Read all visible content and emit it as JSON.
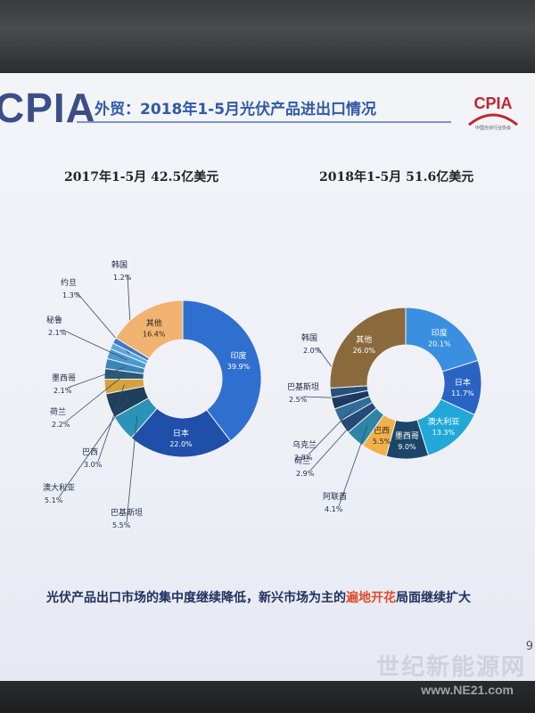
{
  "slide": {
    "logo": "CPIA",
    "title": "外贸：2018年1-5月光伏产品进出口情况",
    "logo_small": "CPIA",
    "logo_small_sub": "中国光伏行业协会",
    "caption_before": "光伏产品出口市场的集中度继续降低，新兴市场为主的",
    "caption_highlight": "遍地开花",
    "caption_after": "局面继续扩大",
    "page_number": "9",
    "watermark": "世纪新能源网",
    "watermark_url": "www.NE21.com"
  },
  "chart_data": [
    {
      "type": "pie",
      "donut": true,
      "title": "2017年1-5月 42.5亿美元",
      "slices": [
        {
          "label": "印度",
          "value": 39.9,
          "value_label": "39.9%",
          "color": "#2f6fd0"
        },
        {
          "label": "日本",
          "value": 22.0,
          "value_label": "22.0%",
          "color": "#1f4fa8"
        },
        {
          "label": "巴基斯坦",
          "value": 5.5,
          "value_label": "5.5%",
          "color": "#2a93b8"
        },
        {
          "label": "澳大利亚",
          "value": 5.1,
          "value_label": "5.1%",
          "color": "#1f3f5a"
        },
        {
          "label": "巴西",
          "value": 3.0,
          "value_label": "3.0%",
          "color": "#d6a23a"
        },
        {
          "label": "荷兰",
          "value": 2.2,
          "value_label": "2.2%",
          "color": "#2a5a78"
        },
        {
          "label": "墨西哥",
          "value": 2.1,
          "value_label": "2.1%",
          "color": "#3a86b8"
        },
        {
          "label": "秘鲁",
          "value": 2.1,
          "value_label": "2.1%",
          "color": "#4a9ad0"
        },
        {
          "label": "约旦",
          "value": 1.3,
          "value_label": "1.3%",
          "color": "#5aa8de"
        },
        {
          "label": "韩国",
          "value": 1.2,
          "value_label": "1.2%",
          "color": "#3c78c8"
        },
        {
          "label": "其他",
          "value": 16.4,
          "value_label": "16.4%",
          "color": "#f2b270"
        }
      ]
    },
    {
      "type": "pie",
      "donut": true,
      "title": "2018年1-5月 51.6亿美元",
      "slices": [
        {
          "label": "印度",
          "value": 20.1,
          "value_label": "20.1%",
          "color": "#3a8fe0"
        },
        {
          "label": "日本",
          "value": 11.7,
          "value_label": "11.7%",
          "color": "#2a63c2"
        },
        {
          "label": "澳大利亚",
          "value": 13.3,
          "value_label": "13.3%",
          "color": "#22a8d8"
        },
        {
          "label": "墨西哥",
          "value": 9.0,
          "value_label": "9.0%",
          "color": "#1c4668"
        },
        {
          "label": "巴西",
          "value": 5.5,
          "value_label": "5.5%",
          "color": "#f2b04a"
        },
        {
          "label": "阿联酋",
          "value": 4.1,
          "value_label": "4.1%",
          "color": "#2d86a8"
        },
        {
          "label": "荷兰",
          "value": 2.9,
          "value_label": "2.9%",
          "color": "#244a78"
        },
        {
          "label": "乌克兰",
          "value": 2.8,
          "value_label": "2.8%",
          "color": "#2f6e9a"
        },
        {
          "label": "巴基斯坦",
          "value": 2.5,
          "value_label": "2.5%",
          "color": "#1c3a5e"
        },
        {
          "label": "韩国",
          "value": 2.0,
          "value_label": "2.0%",
          "color": "#28507e"
        },
        {
          "label": "其他",
          "value": 26.0,
          "value_label": "26.0%",
          "color": "#8a6a3c"
        }
      ]
    }
  ]
}
